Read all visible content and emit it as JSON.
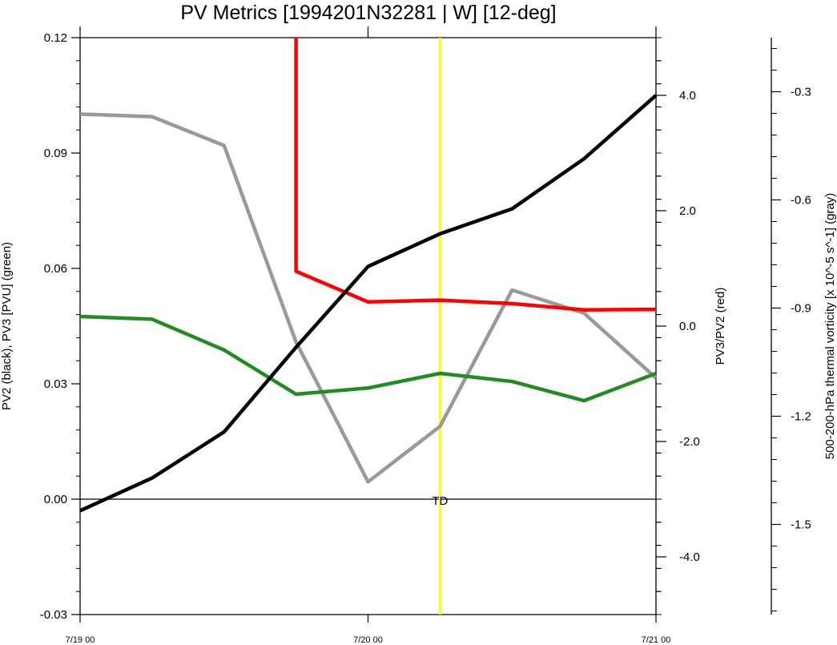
{
  "chart_data": {
    "type": "line",
    "title": "PV Metrics [1994201N32281 | W] [12-deg]",
    "x_tick_labels": [
      "7/19 00",
      "7/20 00",
      "7/21 00"
    ],
    "x": [
      "7/19 00",
      "7/19 06",
      "7/19 12",
      "7/19 18",
      "7/20 00",
      "7/20 06",
      "7/20 12",
      "7/20 18",
      "7/21 00"
    ],
    "axes": {
      "left": {
        "label": "PV2 (black), PV3 [PVU] (green)",
        "ylim": [
          -0.03,
          0.12
        ],
        "ticks": [
          "-0.03",
          "0.00",
          "0.03",
          "0.06",
          "0.09",
          "0.12"
        ]
      },
      "right1": {
        "label": "PV3/PV2 (red)",
        "ylim": [
          -5.0,
          5.0
        ],
        "ticks": [
          "-4.0",
          "-2.0",
          "0.0",
          "2.0",
          "4.0"
        ]
      },
      "right2": {
        "label": "500-200-hPa thermal vorticity [x 10^-5 s^-1] (gray)",
        "ylim": [
          -1.75,
          -0.15
        ],
        "ticks": [
          "-1.5",
          "-1.2",
          "-0.9",
          "-0.6",
          "-0.3"
        ]
      }
    },
    "series": [
      {
        "axis": "left",
        "color": "#000000",
        "values": [
          -0.003,
          0.0055,
          0.0175,
          0.0395,
          0.0605,
          0.069,
          0.0755,
          0.0885,
          0.105
        ]
      },
      {
        "axis": "left",
        "color": "#228b22",
        "values": [
          0.0475,
          0.0468,
          0.0388,
          0.0273,
          0.0289,
          0.0327,
          0.0306,
          0.0256,
          0.0327
        ]
      },
      {
        "axis": "right1",
        "color": "#ff0000",
        "values": [
          null,
          null,
          null,
          0.95,
          0.42,
          0.45,
          0.39,
          0.28,
          0.29
        ],
        "offscale_top": true
      },
      {
        "axis": "right2",
        "color": "#999999",
        "values": [
          -0.362,
          -0.369,
          -0.449,
          -0.994,
          -1.382,
          -1.228,
          -0.85,
          -0.914,
          -1.094
        ]
      }
    ],
    "marker_line": {
      "x": "7/20 06",
      "color": "#ffff00"
    },
    "annotation": {
      "text": "TD",
      "x": "7/20 06",
      "y": 0.0
    }
  }
}
